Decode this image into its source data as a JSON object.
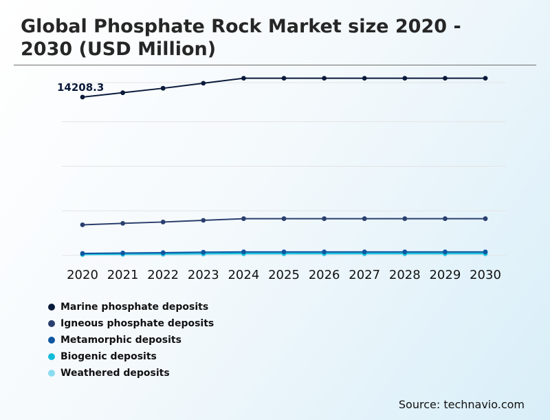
{
  "title": "Global Phosphate Rock Market size 2020 - 2030 (USD Million)",
  "source": "Source: technavio.com",
  "chart_data": {
    "type": "line",
    "title": "Global Phosphate Rock Market size 2020 - 2030 (USD Million)",
    "categories": [
      "2020",
      "2021",
      "2022",
      "2023",
      "2024",
      "2025",
      "2026",
      "2027",
      "2028",
      "2029",
      "2030"
    ],
    "ylim": [
      0,
      16000
    ],
    "grid": true,
    "legend_position": "bottom-left",
    "series": [
      {
        "name": "Marine phosphate deposits",
        "color": "#0a1a3a",
        "values": [
          14208.3,
          14600,
          15000,
          15450,
          15900,
          15900,
          15900,
          15900,
          15900,
          15900,
          15900
        ]
      },
      {
        "name": "Igneous phosphate deposits",
        "color": "#2a3f6e",
        "values": [
          2750,
          2880,
          3000,
          3150,
          3300,
          3300,
          3300,
          3300,
          3300,
          3300,
          3300
        ]
      },
      {
        "name": "Metamorphic deposits",
        "color": "#0f56a0",
        "values": [
          180,
          220,
          250,
          290,
          320,
          320,
          320,
          320,
          320,
          320,
          320
        ]
      },
      {
        "name": "Biogenic deposits",
        "color": "#12bcd8",
        "values": [
          110,
          130,
          150,
          170,
          190,
          190,
          190,
          190,
          190,
          190,
          190
        ]
      },
      {
        "name": "Weathered deposits",
        "color": "#8adcf0",
        "values": [
          60,
          75,
          90,
          105,
          120,
          120,
          120,
          120,
          120,
          120,
          120
        ]
      }
    ],
    "annotations": [
      {
        "series": 0,
        "point": 0,
        "text": "14208.3"
      }
    ]
  }
}
